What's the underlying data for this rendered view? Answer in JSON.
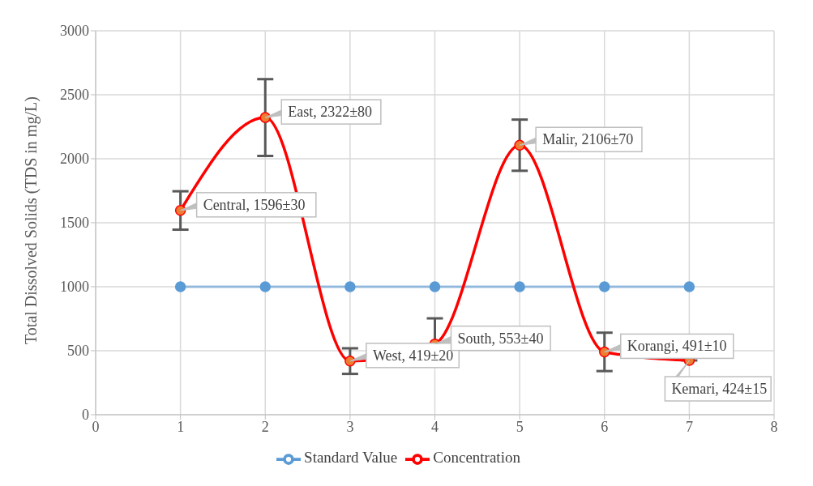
{
  "chart_data": {
    "type": "line",
    "ylabel": "Total Dissolved Solids (TDS in mg/L)",
    "x": [
      1,
      2,
      3,
      4,
      5,
      6,
      7
    ],
    "series": [
      {
        "name": "Standard Value",
        "color": "#5b9bd5",
        "values": [
          1000,
          1000,
          1000,
          1000,
          1000,
          1000,
          1000
        ]
      },
      {
        "name": "Concentration",
        "color": "#ff0000",
        "values": [
          1596,
          2322,
          419,
          553,
          2106,
          491,
          424
        ],
        "errors": [
          150,
          300,
          100,
          [
            553,
            753
          ],
          200,
          150,
          [
            424,
            524
          ]
        ],
        "value_labels": [
          "Central, 1596±30",
          "East, 2322±80",
          "West, 419±20",
          "South, 553±40",
          "Malir, 2106±70",
          "Korangi, 491±10",
          "Kemari, 424±15"
        ]
      }
    ],
    "xlim": [
      0,
      8
    ],
    "xticks": [
      0,
      1,
      2,
      3,
      4,
      5,
      6,
      7,
      8
    ],
    "ylim": [
      0,
      3000
    ],
    "yticks": [
      0,
      500,
      1000,
      1500,
      2000,
      2500,
      3000
    ],
    "grid": true,
    "legend": "bottom",
    "marker": "circle",
    "line_style": "solid"
  }
}
